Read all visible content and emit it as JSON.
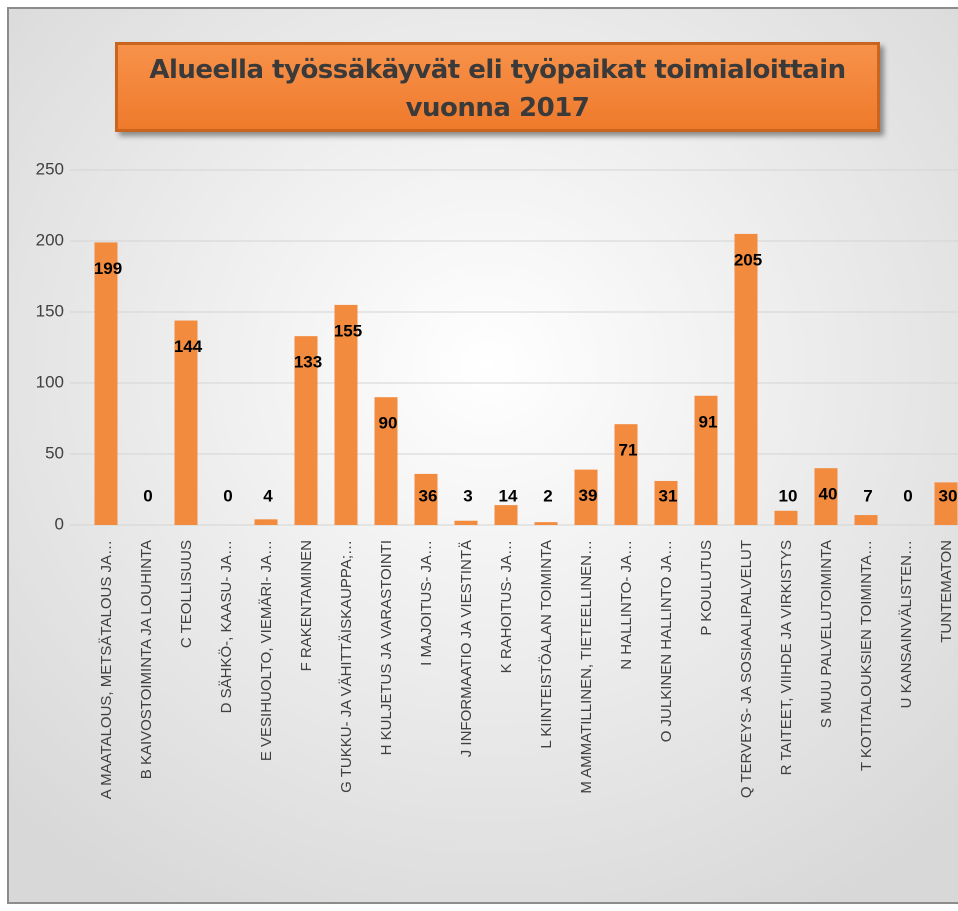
{
  "chart_data": {
    "type": "bar",
    "title": "Alueella työssäkäyvät eli työpaikat toimialoittain vuonna 2017",
    "categories": [
      "A MAATALOUS, METSÄTALOUS JA…",
      "B KAIVOSTOIMINTA JA LOUHINTA",
      "C TEOLLISUUS",
      "D SÄHKÖ-, KAASU- JA…",
      "E VESIHUOLTO, VIEMÄRI- JA…",
      "F RAKENTAMINEN",
      "G TUKKU- JA VÄHITTÄISKAUPPA;…",
      "H KULJETUS JA VARASTOINTI",
      "I MAJOITUS- JA…",
      "J INFORMAATIO JA VIESTINTÄ",
      "K RAHOITUS- JA…",
      "L KIINTEISTÖALAN TOIMINTA",
      "M AMMATILLINEN, TIETEELLINEN…",
      "N HALLINTO- JA…",
      "O JULKINEN HALLINTO JA…",
      "P KOULUTUS",
      "Q TERVEYS- JA SOSIAALIPALVELUT",
      "R TAITEET, VIIHDE JA VIRKISTYS",
      "S MUU PALVELUTOIMINTA",
      "T KOTITALOUKSIEN TOIMINTA…",
      "U KANSAINVÄLISTEN…",
      "TUNTEMATON"
    ],
    "values": [
      199,
      0,
      144,
      0,
      4,
      133,
      155,
      90,
      36,
      3,
      14,
      2,
      39,
      71,
      31,
      91,
      205,
      10,
      40,
      7,
      0,
      30
    ],
    "color": "#f28b3e",
    "ylim": [
      0,
      250
    ],
    "yticks": [
      0,
      50,
      100,
      150,
      200,
      250
    ],
    "grid": true
  }
}
